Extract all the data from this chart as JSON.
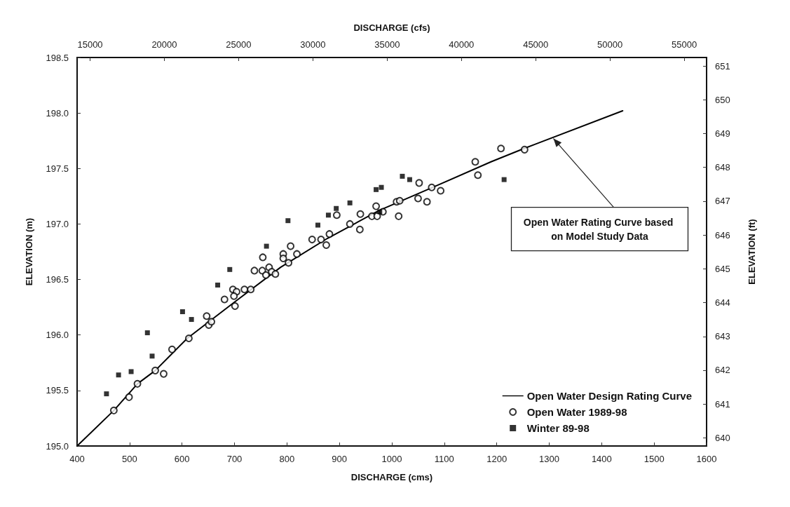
{
  "chart_data": {
    "type": "scatter",
    "xlabel": "DISCHARGE (cms)",
    "x2label": "DISCHARGE (cfs)",
    "ylabel": "ELEVATION (m)",
    "y2label": "ELEVATION (ft)",
    "xlim": [
      400,
      1600
    ],
    "xticks": [
      400,
      500,
      600,
      700,
      800,
      900,
      1000,
      1100,
      1200,
      1300,
      1400,
      1500,
      1600
    ],
    "x2lim": [
      14126,
      56504
    ],
    "x2ticks": [
      15000,
      20000,
      25000,
      30000,
      35000,
      40000,
      45000,
      50000,
      55000
    ],
    "ylim": [
      195,
      198.5
    ],
    "yticks": [
      {
        "value": 195,
        "label": "195.0"
      },
      195.5,
      {
        "value": 196,
        "label": "196.0"
      },
      196.5,
      {
        "value": 197,
        "label": "197.0"
      },
      197.5,
      {
        "value": 198,
        "label": "198.0"
      },
      198.5
    ],
    "y2lim": [
      639.76,
      651.25
    ],
    "y2ticks": [
      640,
      641,
      642,
      643,
      644,
      645,
      646,
      647,
      648,
      649,
      650,
      651
    ],
    "grid": false,
    "legend": "bottom right",
    "annotations": [
      {
        "text": "Open Water Rating Curve based on Model Study Data",
        "x": 1308,
        "y": 197.77
      }
    ],
    "series": [
      {
        "name": "Open Water Design Rating Curve",
        "type": "line",
        "color": "#000000",
        "marker": "none",
        "line_style": "solid",
        "x": [
          400,
          470,
          515,
          549,
          610,
          701,
          788,
          877,
          975,
          1078,
          1189,
          1252,
          1440
        ],
        "values": [
          195.0,
          195.32,
          195.56,
          195.68,
          195.97,
          196.3,
          196.61,
          196.87,
          197.12,
          197.33,
          197.56,
          197.68,
          198.02
        ]
      },
      {
        "name": "Open Water 1989-98",
        "color": "#000000",
        "marker": "circle",
        "x": [
          470,
          499,
          515,
          549,
          565,
          581,
          613,
          647,
          651,
          656,
          681,
          697,
          704,
          699,
          701,
          719,
          731,
          754,
          738,
          753,
          766,
          760,
          771,
          778,
          793,
          793,
          807,
          819,
          803,
          848,
          865,
          875,
          881,
          895,
          920,
          940,
          939,
          962,
          972,
          970,
          983,
          1009,
          1015,
          1013,
          1052,
          1050,
          1067,
          1076,
          1093,
          1159,
          1164,
          1208,
          1253
        ],
        "values": [
          195.32,
          195.44,
          195.56,
          195.68,
          195.65,
          195.87,
          195.97,
          196.17,
          196.09,
          196.12,
          196.32,
          196.41,
          196.39,
          196.35,
          196.26,
          196.41,
          196.41,
          196.7,
          196.58,
          196.58,
          196.61,
          196.54,
          196.57,
          196.55,
          196.73,
          196.69,
          196.8,
          196.73,
          196.65,
          196.86,
          196.86,
          196.81,
          196.91,
          197.08,
          197.0,
          197.09,
          196.95,
          197.07,
          197.07,
          197.16,
          197.11,
          197.2,
          197.21,
          197.07,
          197.37,
          197.23,
          197.2,
          197.33,
          197.3,
          197.56,
          197.44,
          197.68,
          197.67
        ]
      },
      {
        "name": "Winter 89-98",
        "color": "#000000",
        "marker": "square",
        "x": [
          456,
          479,
          503,
          543,
          534,
          601,
          618,
          668,
          691,
          761,
          802,
          859,
          879,
          894,
          920,
          970,
          980,
          1020,
          1034,
          977,
          1214
        ],
        "values": [
          195.47,
          195.64,
          195.67,
          195.81,
          196.02,
          196.21,
          196.14,
          196.45,
          196.59,
          196.8,
          197.03,
          196.99,
          197.08,
          197.14,
          197.19,
          197.31,
          197.33,
          197.43,
          197.4,
          197.11,
          197.4
        ]
      }
    ]
  }
}
